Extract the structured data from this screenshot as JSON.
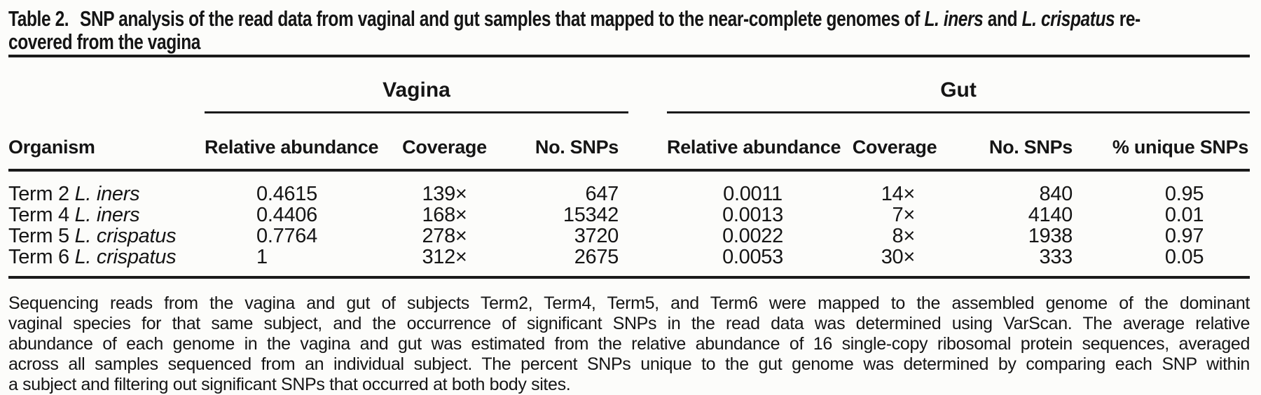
{
  "title": {
    "lines": [
      {
        "parts": [
          {
            "text": "Table 2.",
            "label": true
          },
          {
            "text": "SNP analysis of the read data from vaginal and gut samples that mapped to the near-complete genomes of "
          },
          {
            "text": "L. iners",
            "italic": true
          },
          {
            "text": " and "
          },
          {
            "text": "L. crispatus",
            "italic": true
          },
          {
            "text": " re-"
          }
        ]
      },
      {
        "parts": [
          {
            "text": "covered from the vagina"
          }
        ]
      }
    ]
  },
  "table": {
    "groups": {
      "vagina": "Vagina",
      "gut": "Gut"
    },
    "columns": {
      "organism": "Organism",
      "relative_abundance": "Relative abundance",
      "coverage": "Coverage",
      "no_snps": "No. SNPs",
      "unique_snps": "% unique SNPs"
    },
    "rows": [
      {
        "organism": {
          "prefix": "Term 2 ",
          "species": "L. iners"
        },
        "vagina": {
          "relative_abundance": "0.4615",
          "coverage": "139×",
          "no_snps": "647"
        },
        "gut": {
          "relative_abundance": "0.0011",
          "coverage": "14×",
          "no_snps": "840",
          "unique_snps": "0.95"
        }
      },
      {
        "organism": {
          "prefix": "Term 4 ",
          "species": "L. iners"
        },
        "vagina": {
          "relative_abundance": "0.4406",
          "coverage": "168×",
          "no_snps": "15342"
        },
        "gut": {
          "relative_abundance": "0.0013",
          "coverage": "7×",
          "no_snps": "4140",
          "unique_snps": "0.01"
        }
      },
      {
        "organism": {
          "prefix": "Term 5 ",
          "species": "L. crispatus"
        },
        "vagina": {
          "relative_abundance": "0.7764",
          "coverage": "278×",
          "no_snps": "3720"
        },
        "gut": {
          "relative_abundance": "0.0022",
          "coverage": "8×",
          "no_snps": "1938",
          "unique_snps": "0.97"
        }
      },
      {
        "organism": {
          "prefix": "Term 6 ",
          "species": "L. crispatus"
        },
        "vagina": {
          "relative_abundance": "1",
          "coverage": "312×",
          "no_snps": "2675"
        },
        "gut": {
          "relative_abundance": "0.0053",
          "coverage": "30×",
          "no_snps": "333",
          "unique_snps": "0.05"
        }
      }
    ]
  },
  "footnote": {
    "lines": [
      "Sequencing reads from the vagina and gut of subjects Term2, Term4, Term5, and Term6 were mapped to the assembled genome of the dominant",
      "vaginal species for that same subject, and the occurrence of significant SNPs in the read data was determined using VarScan. The average relative",
      "abundance of each genome in the vagina and gut was estimated from the relative abundance of 16 single-copy ribosomal protein sequences, averaged",
      "across all samples sequenced from an individual subject. The percent SNPs unique to the gut genome was determined by comparing each SNP within",
      "a subject and filtering out significant SNPs that occurred at both body sites."
    ]
  }
}
